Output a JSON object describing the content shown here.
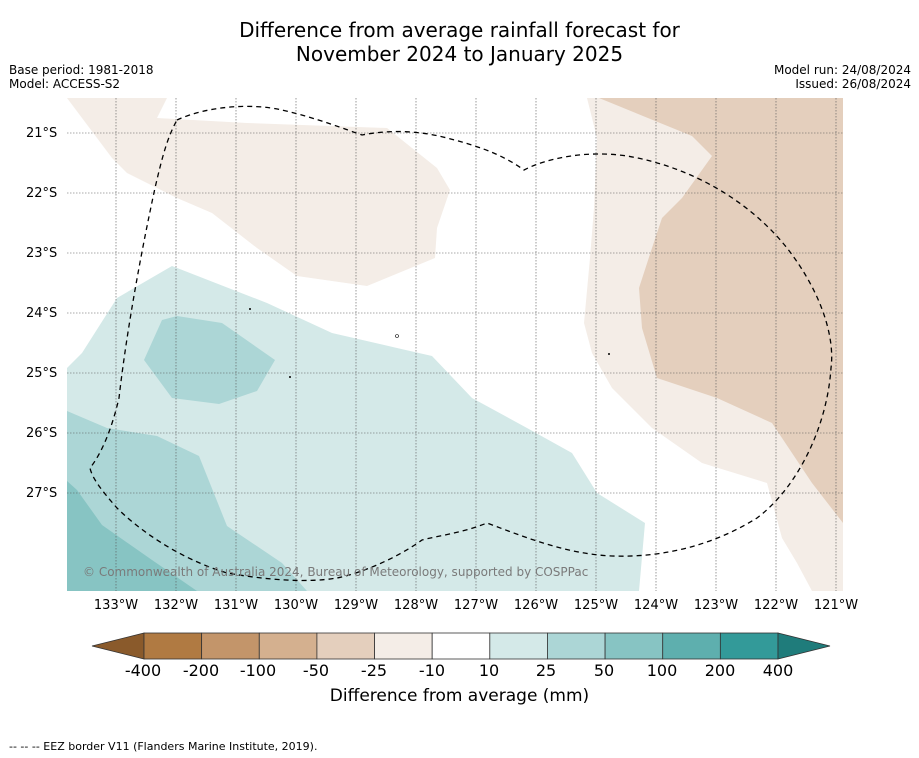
{
  "title_line1": "Difference from average rainfall forecast for",
  "title_line2": "November 2024 to January 2025",
  "base_period": "Base period: 1981-2018",
  "model": "Model: ACCESS-S2",
  "model_run": "Model run: 24/08/2024",
  "issued": "Issued: 26/08/2024",
  "lat_labels": [
    "21°S",
    "22°S",
    "23°S",
    "24°S",
    "25°S",
    "26°S",
    "27°S"
  ],
  "lon_labels": [
    "133°W",
    "132°W",
    "131°W",
    "130°W",
    "129°W",
    "128°W",
    "127°W",
    "126°W",
    "125°W",
    "124°W",
    "123°W",
    "122°W",
    "121°W"
  ],
  "copyright": "© Commonwealth of Australia 2024, Bureau of Meteorology, supported by COSPPac",
  "colorbar": {
    "labels": [
      "-400",
      "-200",
      "-100",
      "-50",
      "-25",
      "-10",
      "10",
      "25",
      "50",
      "100",
      "200",
      "400"
    ],
    "colors": [
      "#8a5a2b",
      "#b07a42",
      "#c3956a",
      "#d4b08f",
      "#e4cfbd",
      "#f4ede7",
      "#ffffff",
      "#d4e9e8",
      "#acd6d6",
      "#87c4c3",
      "#5eafae",
      "#339a99",
      "#1f7c7b"
    ],
    "title": "Difference from average (mm)"
  },
  "footer": "--  --  -- EEZ border V11 (Flanders Marine Institute, 2019)."
}
